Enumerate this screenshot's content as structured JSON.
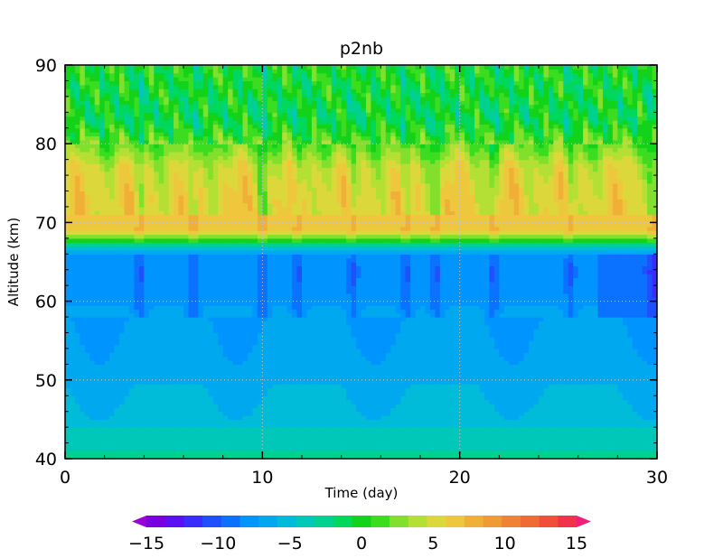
{
  "chart_data": {
    "type": "heatmap",
    "title": "p2nb",
    "xlabel": "Time (day)",
    "ylabel": "Altitude (km)",
    "xlim": [
      0,
      30
    ],
    "ylim": [
      40,
      90
    ],
    "x_ticks": [
      "0",
      "10",
      "20",
      "30"
    ],
    "y_ticks": [
      "40",
      "50",
      "60",
      "70",
      "80",
      "90"
    ],
    "grid": "dotted",
    "legend": "colorbar-bottom",
    "colorbar": {
      "range": [
        -15,
        15
      ],
      "step": 1.5,
      "tick_values": [
        -15,
        -10,
        -5,
        0,
        5,
        10,
        15
      ],
      "tick_labels": [
        "−15",
        "−10",
        "−5",
        "0",
        "5",
        "10",
        "15"
      ],
      "colors": [
        "#9b00d8",
        "#7a00e0",
        "#5a10f0",
        "#3a2cff",
        "#1f50ff",
        "#0a72ff",
        "#0094ff",
        "#00a8f0",
        "#00bcd8",
        "#00c8b8",
        "#00d090",
        "#00d85c",
        "#12d21a",
        "#3cdc20",
        "#82e02c",
        "#b4e035",
        "#dcd83c",
        "#eec83c",
        "#f0b038",
        "#f09a36",
        "#f08234",
        "#f06a34",
        "#f05038",
        "#f0324a",
        "#f01f78"
      ]
    },
    "altitude_profile": {
      "altitude_km": [
        40,
        41,
        43,
        45,
        48,
        52,
        57,
        61,
        64,
        66,
        67,
        67.5,
        68,
        69,
        70,
        73,
        77,
        80,
        83,
        86,
        90
      ],
      "value": [
        0,
        -1.5,
        -2.5,
        -3.5,
        -4.2,
        -5.0,
        -5.6,
        -6.3,
        -7.0,
        -6.2,
        -3.0,
        0.5,
        4.0,
        9.5,
        9.0,
        9.0,
        8.0,
        4.5,
        1.5,
        2.0,
        2.5
      ]
    },
    "notable_events_day": [
      3.8,
      6.5,
      10,
      11.8,
      14.6,
      17.3,
      18.8,
      21.7,
      25.6,
      29.8
    ]
  }
}
